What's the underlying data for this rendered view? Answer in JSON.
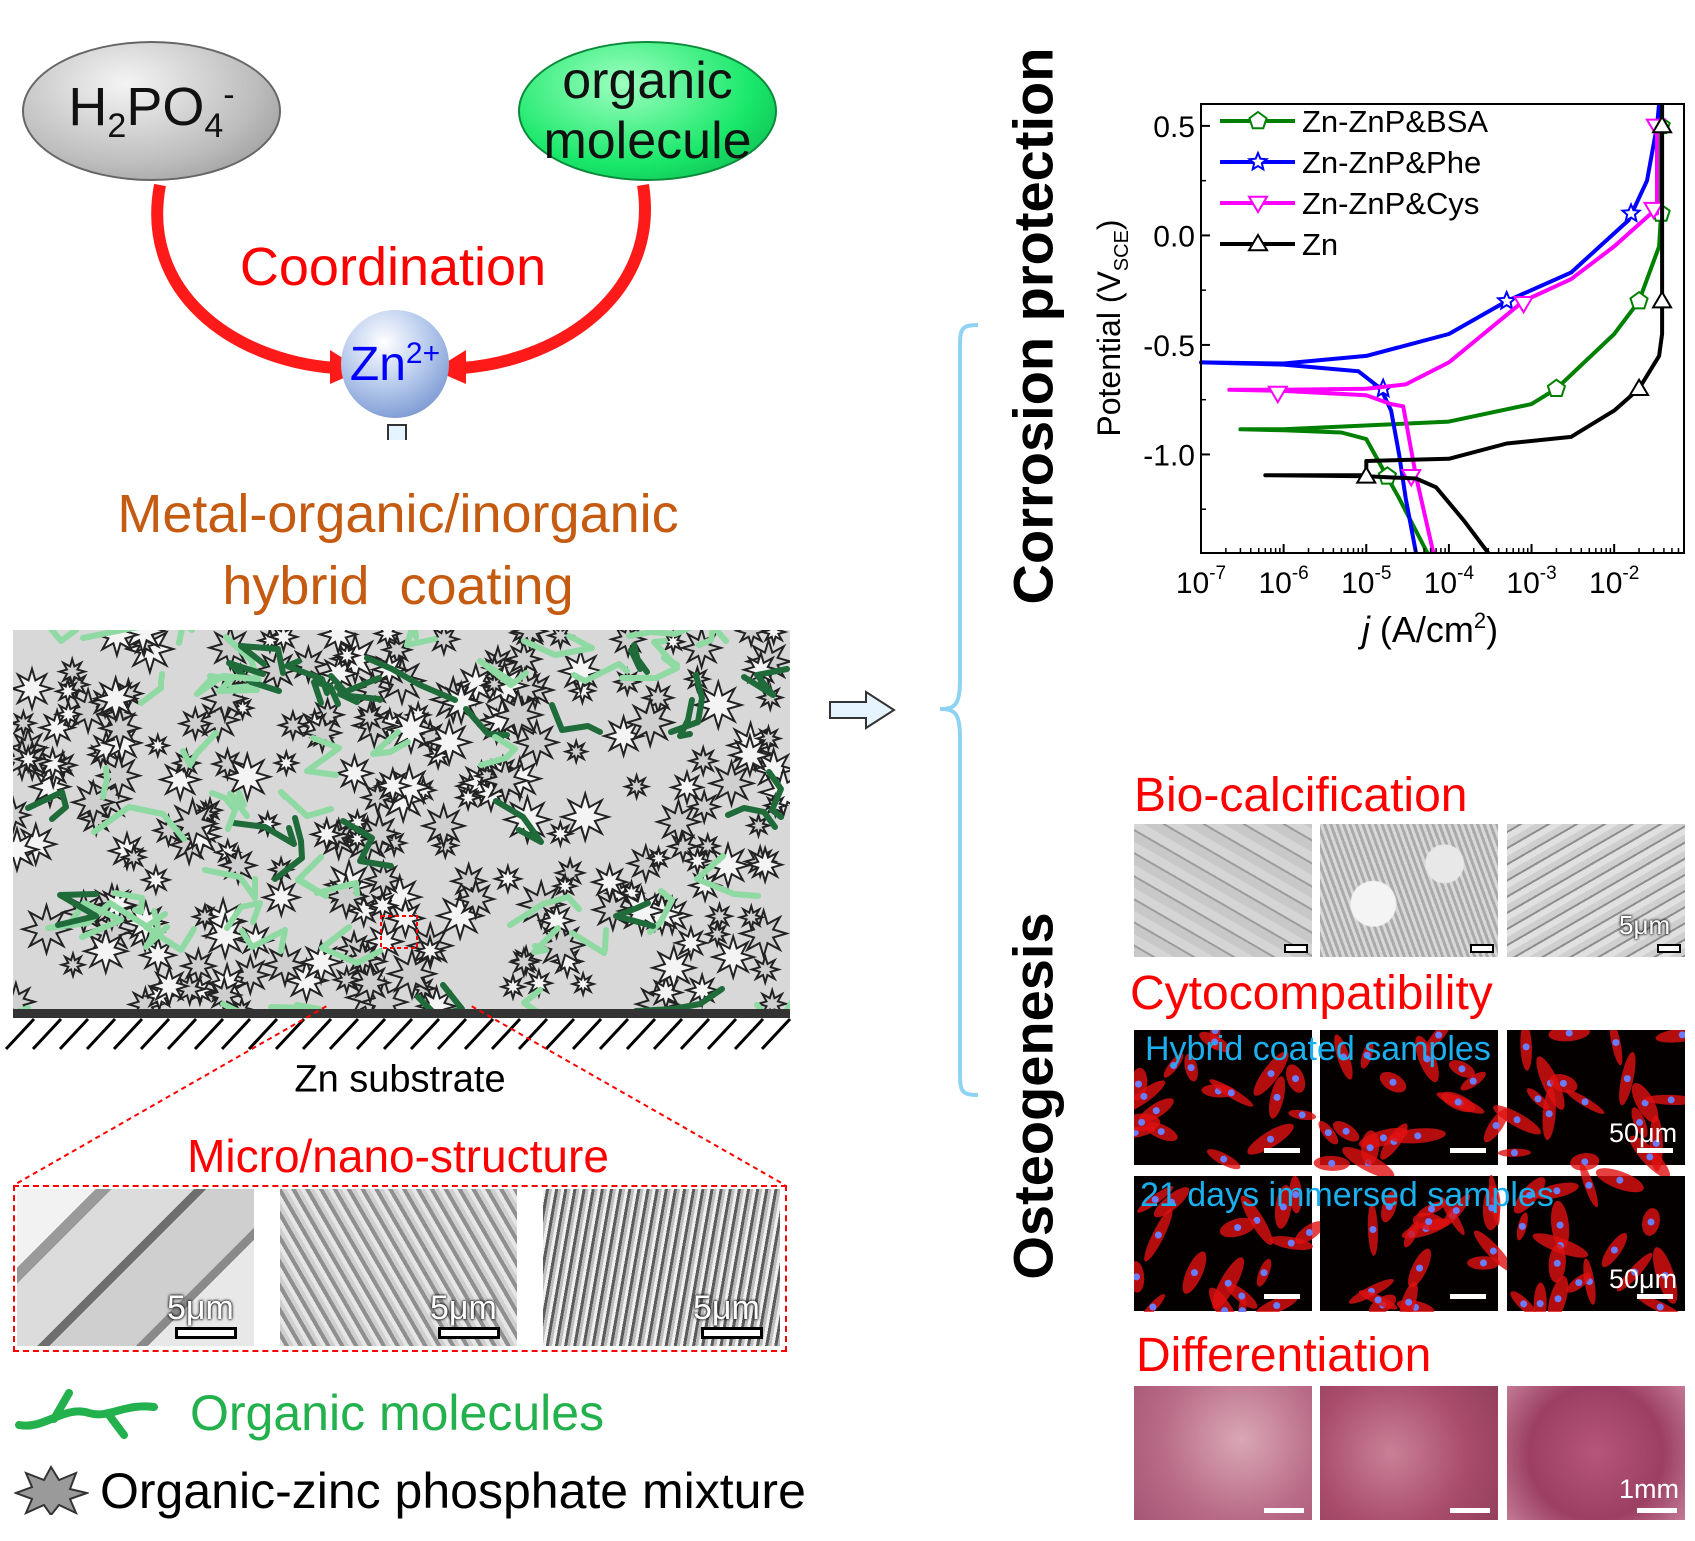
{
  "left": {
    "reactant_1": {
      "base": "H",
      "sub1": "2",
      "mid": "PO",
      "sub2": "4",
      "sup": "-"
    },
    "reactant_2": {
      "line1": "organic",
      "line2": "molecule"
    },
    "coordination_label": "Coordination",
    "ion": {
      "base": "Zn",
      "sup": "2+"
    },
    "product_line1": "Metal-organic/inorganic",
    "product_line2": "hybrid  coating",
    "substrate_label": "Zn substrate",
    "micro_label": "Micro/nano-structure",
    "sem_images": [
      {
        "scale": "5μm"
      },
      {
        "scale": "5μm"
      },
      {
        "scale": "5μm"
      }
    ],
    "legend": [
      {
        "label": "Organic molecules",
        "color": "#22b14c"
      },
      {
        "label": "Organic-zinc phosphate mixture",
        "color": "#000000"
      }
    ]
  },
  "right": {
    "corrosion_title": "Corrosion protection",
    "osteogenesis_title": "Osteogenesis",
    "bio_calcification": {
      "title": "Bio-calcification",
      "scale": "5μm"
    },
    "cytocompatibility": {
      "title": "Cytocompatibility",
      "row1_label": "Hybrid coated samples",
      "row2_label": "21 days immersed samples",
      "scale": "50μm"
    },
    "differentiation": {
      "title": "Differentiation",
      "scale": "1mm"
    }
  },
  "colors": {
    "red": "#ff0000",
    "orange": "#c55a11",
    "green": "#22b14c",
    "cyan_label": "#1ab0f0",
    "bracket": "#8fd3f4"
  },
  "chart_data": {
    "type": "line",
    "xlabel_italic": "j",
    "xlabel_unit": "(A/cm",
    "xlabel_sup": "2",
    "ylabel": "Potential (V",
    "ylabel_sub": "SCE",
    "x_scale": "log",
    "xlim": [
      1e-07,
      0.07
    ],
    "ylim": [
      -1.45,
      0.6
    ],
    "x_ticks": [
      {
        "value": 1e-07,
        "base": "10",
        "exp": "-7"
      },
      {
        "value": 1e-06,
        "base": "10",
        "exp": "-6"
      },
      {
        "value": 1e-05,
        "base": "10",
        "exp": "-5"
      },
      {
        "value": 0.0001,
        "base": "10",
        "exp": "-4"
      },
      {
        "value": 0.001,
        "base": "10",
        "exp": "-3"
      },
      {
        "value": 0.01,
        "base": "10",
        "exp": "-2"
      }
    ],
    "y_ticks": [
      {
        "value": 0.5,
        "label": "0.5"
      },
      {
        "value": 0.0,
        "label": "0.0"
      },
      {
        "value": -0.5,
        "label": "-0.5"
      },
      {
        "value": -1.0,
        "label": "-1.0"
      }
    ],
    "legend_position": "top-left",
    "series": [
      {
        "name": "Zn-ZnP&BSA",
        "color": "#008000",
        "marker": "pentagon",
        "points": [
          [
            5.5e-05,
            -1.45
          ],
          [
            2.5e-05,
            -1.2
          ],
          [
            1.5e-05,
            -1.05
          ],
          [
            1e-05,
            -0.93
          ],
          [
            5e-06,
            -0.9
          ],
          [
            1e-06,
            -0.89
          ],
          [
            3e-07,
            -0.885
          ],
          [
            1e-06,
            -0.885
          ],
          [
            0.0001,
            -0.85
          ],
          [
            0.001,
            -0.77
          ],
          [
            0.002,
            -0.7
          ],
          [
            0.01,
            -0.45
          ],
          [
            0.02,
            -0.3
          ],
          [
            0.035,
            -0.05
          ],
          [
            0.037,
            0.1
          ],
          [
            0.037,
            0.6
          ]
        ],
        "markers": [
          [
            1.8e-05,
            -1.1
          ],
          [
            0.002,
            -0.7
          ],
          [
            0.02,
            -0.3
          ],
          [
            0.037,
            0.1
          ],
          [
            0.037,
            0.5
          ]
        ]
      },
      {
        "name": "Zn-ZnP&Phe",
        "color": "#0000ff",
        "marker": "star",
        "points": [
          [
            4e-05,
            -1.45
          ],
          [
            3e-05,
            -1.2
          ],
          [
            2.5e-05,
            -1.0
          ],
          [
            2e-05,
            -0.8
          ],
          [
            1.5e-05,
            -0.7
          ],
          [
            8e-06,
            -0.62
          ],
          [
            1e-06,
            -0.59
          ],
          [
            1e-07,
            -0.58
          ],
          [
            1e-06,
            -0.585
          ],
          [
            1e-05,
            -0.55
          ],
          [
            0.0001,
            -0.45
          ],
          [
            0.0005,
            -0.3
          ],
          [
            0.003,
            -0.17
          ],
          [
            0.015,
            0.07
          ],
          [
            0.025,
            0.25
          ],
          [
            0.033,
            0.5
          ],
          [
            0.035,
            0.6
          ]
        ],
        "markers": [
          [
            1.6e-05,
            -0.7
          ],
          [
            0.0005,
            -0.3
          ],
          [
            0.016,
            0.1
          ]
        ]
      },
      {
        "name": "Zn-ZnP&Cys",
        "color": "#ff00ff",
        "marker": "triangle-down",
        "points": [
          [
            6.5e-05,
            -1.45
          ],
          [
            4e-05,
            -1.1
          ],
          [
            2.8e-05,
            -0.78
          ],
          [
            2e-05,
            -0.77
          ],
          [
            1e-05,
            -0.73
          ],
          [
            1e-06,
            -0.71
          ],
          [
            2.2e-07,
            -0.705
          ],
          [
            1e-06,
            -0.705
          ],
          [
            1e-05,
            -0.7
          ],
          [
            3e-05,
            -0.68
          ],
          [
            0.0001,
            -0.58
          ],
          [
            0.0008,
            -0.3
          ],
          [
            0.003,
            -0.2
          ],
          [
            0.01,
            -0.05
          ],
          [
            0.028,
            0.1
          ],
          [
            0.033,
            0.1
          ],
          [
            0.033,
            0.5
          ],
          [
            0.035,
            0.5
          ]
        ],
        "markers": [
          [
            8.5e-07,
            -0.72
          ],
          [
            3.5e-05,
            -1.1
          ],
          [
            0.0008,
            -0.31
          ],
          [
            0.03,
            0.12
          ],
          [
            0.032,
            0.5
          ]
        ]
      },
      {
        "name": "Zn",
        "color": "#000000",
        "marker": "triangle-up",
        "points": [
          [
            0.0003,
            -1.45
          ],
          [
            0.00015,
            -1.3
          ],
          [
            7e-05,
            -1.15
          ],
          [
            4e-05,
            -1.11
          ],
          [
            1e-05,
            -1.1
          ],
          [
            6e-07,
            -1.095
          ],
          [
            1e-05,
            -1.095
          ],
          [
            1e-05,
            -1.03
          ],
          [
            0.0001,
            -1.02
          ],
          [
            0.0005,
            -0.95
          ],
          [
            0.003,
            -0.92
          ],
          [
            0.01,
            -0.8
          ],
          [
            0.02,
            -0.7
          ],
          [
            0.035,
            -0.55
          ],
          [
            0.038,
            -0.45
          ],
          [
            0.038,
            -0.3
          ],
          [
            0.038,
            0.6
          ]
        ],
        "markers": [
          [
            1e-05,
            -1.1
          ],
          [
            0.02,
            -0.7
          ],
          [
            0.038,
            -0.3
          ],
          [
            0.038,
            0.5
          ]
        ]
      }
    ]
  }
}
